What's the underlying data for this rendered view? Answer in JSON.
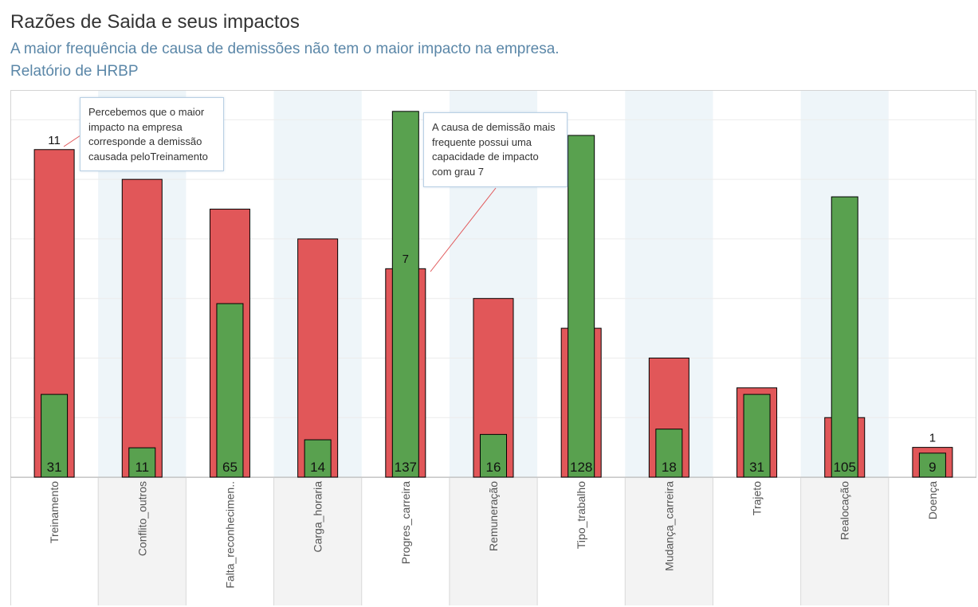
{
  "title": "Razões de Saida e seus impactos",
  "subtitle": "A maior frequência de causa de demissões não tem o maior impacto na empresa.",
  "report_name": "Relatório de HRBP",
  "colors": {
    "impact_bar": "#e15759",
    "frequency_bar": "#59a14f",
    "band_shade": "#eef5f9",
    "label_band_shade": "#f3f3f3",
    "title": "#333333",
    "subtitle": "#5b87a8",
    "annotation_line": "#e15759"
  },
  "annotations": [
    {
      "text": "Percebemos que o maior impacto na empresa corresponde a demissão causada peloTreinamento",
      "target": "Treinamento"
    },
    {
      "text": "A causa de demissão mais frequente possui uma capacidade de impacto com grau 7",
      "target": "Progres_carreira"
    }
  ],
  "chart_data": {
    "type": "bar",
    "layout": "overlapping bars: wide red bar = impacto (left axis), narrow green bar = frequência (right axis, not printed)",
    "categories": [
      "Treinamento",
      "Conflito_outros",
      "Falta_reconhecimen..",
      "Carga_horaria",
      "Progres_carreira",
      "Remuneração",
      "Tipo_trabalho",
      "Mudança_carreira",
      "Trajeto",
      "Realocação",
      "Doença"
    ],
    "series": [
      {
        "values": [
          11,
          10,
          9,
          8,
          7,
          6,
          5,
          4,
          3,
          2,
          1
        ]
      },
      {
        "values": [
          31,
          11,
          65,
          14,
          137,
          16,
          128,
          18,
          31,
          105,
          9
        ]
      }
    ],
    "red_labels": [
      {
        "category": "Treinamento",
        "text": "11"
      },
      {
        "category": "Progres_carreira",
        "text": "7"
      },
      {
        "category": "Doença",
        "text": "1"
      }
    ],
    "green_labels": [
      "31",
      "11",
      "65",
      "14",
      "137",
      "16",
      "128",
      "18",
      "31",
      "105",
      "9"
    ],
    "shaded_columns": [
      1,
      3,
      5,
      7,
      9
    ],
    "ylim_left": [
      0,
      13
    ],
    "ylim_right": [
      0,
      145
    ],
    "grid": "horizontal",
    "legend": "none"
  }
}
